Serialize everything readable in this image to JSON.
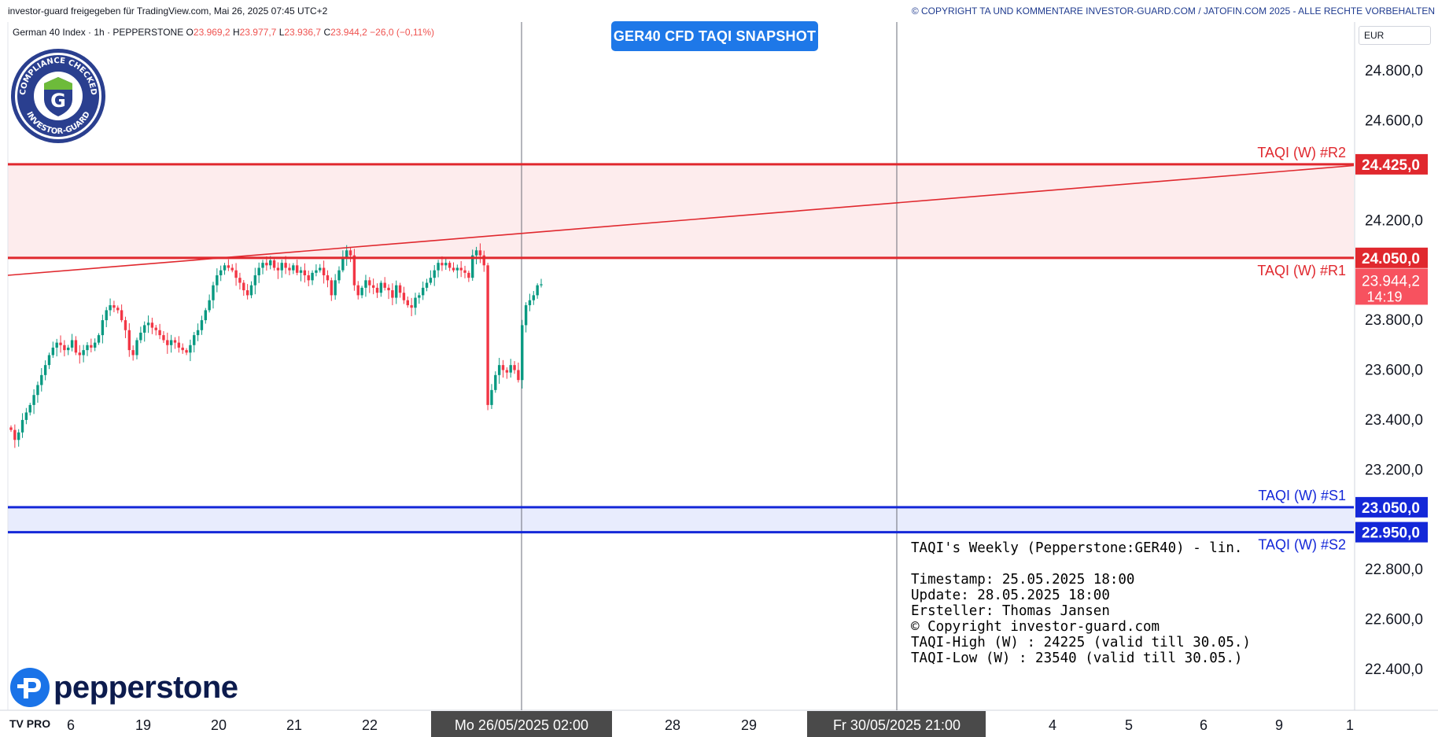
{
  "header": {
    "left_text": "investor-guard freigegeben für TradingView.com, Mai 26, 2025 07:45 UTC+2",
    "right_text": "© COPYRIGHT TA UND KOMMENTARE INVESTOR-GUARD.COM / JATOFIN.COM 2025 - ALLE RECHTE VORBEHALTEN"
  },
  "symbol": {
    "name": "German 40 Index · 1h · PEPPERSTONE",
    "o_label": "O",
    "o_value": "23.969,2",
    "h_label": "H",
    "h_value": "23.977,7",
    "l_label": "L",
    "l_value": "23.936,7",
    "c_label": "C",
    "c_value": "23.944,2",
    "change": "−26,0 (−0,11%)"
  },
  "title_badge": "GER40 CFD TAQI SNAPSHOT",
  "currency": "EUR",
  "stamp": {
    "top_text": "COMPLIANCE CHECKED",
    "bottom_text": "INVESTOR-GUARD",
    "letter": "G"
  },
  "broker_logo": "pepperstone",
  "tv_logo": "TV PRO",
  "info": {
    "line1": "TAQI's Weekly (Pepperstone:GER40) - lin.",
    "line2": "Timestamp: 25.05.2025 18:00",
    "line3": "Update: 28.05.2025 18:00",
    "line4": "Ersteller: Thomas Jansen",
    "line5": "© Copyright investor-guard.com",
    "line6": "TAQI-High (W) : 24225 (valid till 30.05.)",
    "line7": "TAQI-Low (W) : 23540 (valid till 30.05.)"
  },
  "colors": {
    "up": "#089981",
    "down": "#f23645",
    "resistance": "#e0282e",
    "support": "#1428d8",
    "resistance_zone": "#fdeced",
    "support_zone": "#e8ecfd",
    "price_tag": "#f7525f",
    "crosshair_label": "#4a4a4a"
  },
  "chart_data": {
    "type": "candlestick",
    "interval": "1h",
    "y_range": [
      22250,
      24980
    ],
    "y_ticks": [
      "24.800,0",
      "24.600,0",
      "24.200,0",
      "23.800,0",
      "23.600,0",
      "23.400,0",
      "23.200,0",
      "22.800,0",
      "22.600,0",
      "22.400,0"
    ],
    "y_tick_values": [
      24800,
      24600,
      24200,
      23800,
      23600,
      23400,
      23200,
      22800,
      22600,
      22400
    ],
    "x_ticks": [
      "6",
      "19",
      "20",
      "21",
      "22",
      "28",
      "29",
      "4",
      "5",
      "6",
      "9",
      "1"
    ],
    "crosshair_x_label": "Mo 26/05/2025   02:00",
    "vertical_marker_label": "Fr 30/05/2025   21:00",
    "levels": [
      {
        "name": "TAQI (W) #R2",
        "value": 24425,
        "label": "24.425,0",
        "kind": "resistance"
      },
      {
        "name": "TAQI (W) #R1",
        "value": 24050,
        "label": "24.050,0",
        "kind": "resistance"
      },
      {
        "name": "TAQI (W) #S1",
        "value": 23050,
        "label": "23.050,0",
        "kind": "support"
      },
      {
        "name": "TAQI (W) #S2",
        "value": 22950,
        "label": "22.950,0",
        "kind": "support"
      }
    ],
    "current_price": {
      "label": "23.944,2",
      "countdown": "14:19",
      "value": 23944
    },
    "trendline": {
      "start": 23980,
      "end": 24420
    },
    "candles_close": [
      23360,
      23320,
      23350,
      23400,
      23430,
      23460,
      23500,
      23540,
      23580,
      23620,
      23660,
      23690,
      23710,
      23700,
      23680,
      23690,
      23720,
      23670,
      23660,
      23680,
      23700,
      23690,
      23710,
      23740,
      23800,
      23840,
      23860,
      23850,
      23840,
      23800,
      23760,
      23680,
      23660,
      23720,
      23750,
      23780,
      23790,
      23770,
      23760,
      23740,
      23720,
      23700,
      23720,
      23710,
      23690,
      23680,
      23670,
      23700,
      23740,
      23760,
      23800,
      23840,
      23880,
      23940,
      23980,
      24000,
      24020,
      24010,
      24000,
      23970,
      23950,
      23920,
      23900,
      23940,
      23980,
      24010,
      24030,
      24020,
      24040,
      24010,
      24000,
      24030,
      24010,
      24000,
      24020,
      23990,
      24000,
      23980,
      23960,
      23990,
      24000,
      24010,
      23980,
      23960,
      23900,
      23960,
      24000,
      24050,
      24080,
      24060,
      23940,
      23900,
      23930,
      23960,
      23940,
      23930,
      23910,
      23950,
      23930,
      23920,
      23890,
      23940,
      23910,
      23880,
      23860,
      23850,
      23890,
      23900,
      23930,
      23950,
      23970,
      24000,
      24030,
      24020,
      24030,
      24010,
      24000,
      24010,
      24000,
      23990,
      23970,
      24060,
      24080,
      24060,
      24020,
      23460,
      23520,
      23580,
      23620,
      23600,
      23590,
      23620,
      23600,
      23560,
      23780,
      23860,
      23880,
      23900,
      23940,
      23944
    ],
    "x_labels_font_note": ""
  }
}
